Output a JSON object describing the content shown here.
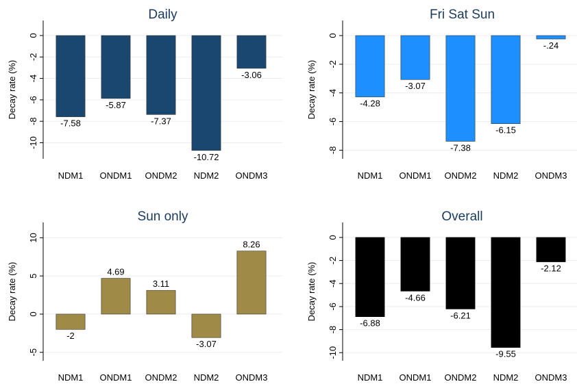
{
  "chart_data": [
    {
      "type": "bar",
      "title": "Daily",
      "y_label": "Decay rate (%)",
      "categories": [
        "NDM1",
        "ONDM1",
        "ONDM2",
        "NDM2",
        "ONDM3"
      ],
      "values": [
        -7.58,
        -5.87,
        -7.37,
        -10.72,
        -3.06
      ],
      "color": "#1a476f",
      "ylim": [
        -11.5,
        1.4
      ],
      "yticks": [
        0,
        -2,
        -4,
        -6,
        -8,
        -10
      ],
      "grid": true
    },
    {
      "type": "bar",
      "title": "Fri Sat Sun",
      "y_label": "Decay rate (%)",
      "categories": [
        "NDM1",
        "ONDM1",
        "ONDM2",
        "NDM2",
        "ONDM3"
      ],
      "values": [
        -4.28,
        -3.07,
        -7.38,
        -6.15,
        -0.24
      ],
      "value_labels": [
        "-4.28",
        "-3.07",
        "-7.38",
        "-6.15",
        "-.24"
      ],
      "color": "#1e8fff",
      "ylim": [
        -8.6,
        1.05
      ],
      "yticks": [
        0,
        -2,
        -4,
        -6,
        -8
      ],
      "grid": true
    },
    {
      "type": "bar",
      "title": "Sun only",
      "y_label": "Decay rate (%)",
      "categories": [
        "NDM1",
        "ONDM1",
        "ONDM2",
        "NDM2",
        "ONDM3"
      ],
      "values": [
        -2,
        4.69,
        3.11,
        -3.07,
        8.26
      ],
      "color": "#a08a48",
      "ylim": [
        -6.1,
        12
      ],
      "yticks": [
        10,
        5,
        0,
        -5
      ],
      "grid": true
    },
    {
      "type": "bar",
      "title": "Overall",
      "y_label": "Decay rate (%)",
      "categories": [
        "NDM1",
        "ONDM1",
        "ONDM2",
        "NDM2",
        "ONDM3"
      ],
      "values": [
        -6.88,
        -4.66,
        -6.21,
        -9.55,
        -2.12
      ],
      "color": "#000000",
      "ylim": [
        -10.7,
        1.3
      ],
      "yticks": [
        0,
        -2,
        -4,
        -6,
        -8,
        -10
      ],
      "grid": true
    }
  ]
}
